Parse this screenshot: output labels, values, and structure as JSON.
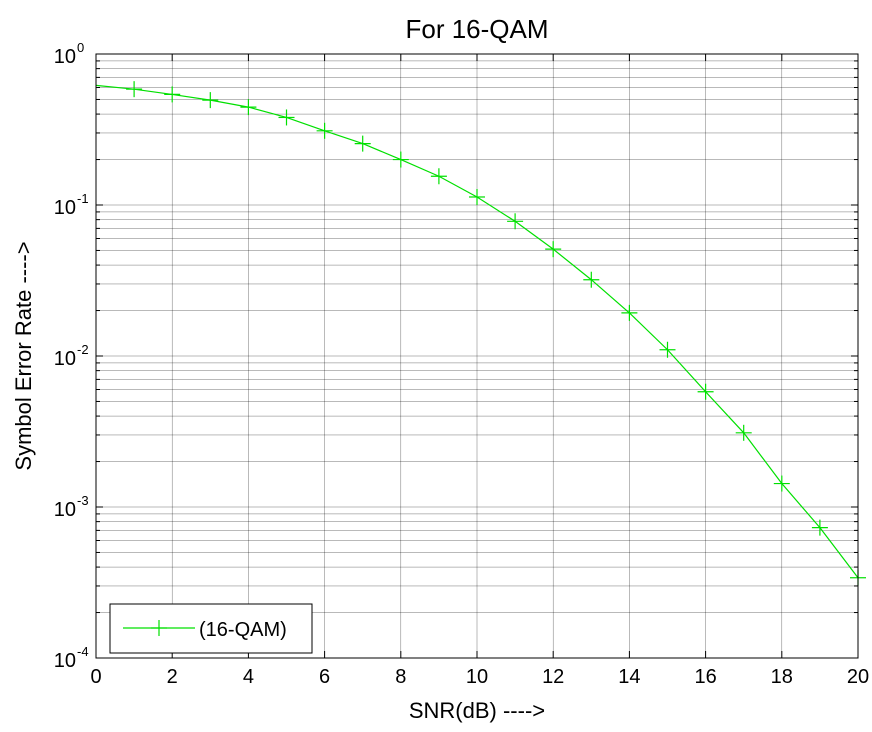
{
  "chart_data": {
    "type": "line",
    "title": "For 16-QAM",
    "xlabel": "SNR(dB) ---->",
    "ylabel": "Symbol Error Rate ---->",
    "xlim": [
      0,
      20
    ],
    "ylim": [
      0.0001,
      1
    ],
    "yscale": "log",
    "grid": true,
    "x_ticks": [
      0,
      2,
      4,
      6,
      8,
      10,
      12,
      14,
      16,
      18,
      20
    ],
    "x_tick_labels": [
      "0",
      "2",
      "4",
      "6",
      "8",
      "10",
      "12",
      "14",
      "16",
      "18",
      "20"
    ],
    "y_ticks": [
      {
        "value": 1,
        "base": "10",
        "exp": "0"
      },
      {
        "value": 0.1,
        "base": "10",
        "exp": "-1"
      },
      {
        "value": 0.01,
        "base": "10",
        "exp": "-2"
      },
      {
        "value": 0.001,
        "base": "10",
        "exp": "-3"
      },
      {
        "value": 0.0001,
        "base": "10",
        "exp": "-4"
      }
    ],
    "legend_position": "bottom-left",
    "series": [
      {
        "name": "(16-QAM)",
        "color": "#00e000",
        "marker": "plus",
        "x": [
          0,
          1,
          2,
          3,
          4,
          5,
          6,
          7,
          8,
          9,
          10,
          11,
          12,
          13,
          14,
          15,
          16,
          17,
          18,
          19,
          20
        ],
        "y": [
          0.62,
          0.585,
          0.54,
          0.495,
          0.445,
          0.38,
          0.31,
          0.255,
          0.2,
          0.155,
          0.113,
          0.078,
          0.051,
          0.032,
          0.0193,
          0.011,
          0.0058,
          0.0031,
          0.00143,
          0.00073,
          0.00034
        ]
      }
    ]
  }
}
